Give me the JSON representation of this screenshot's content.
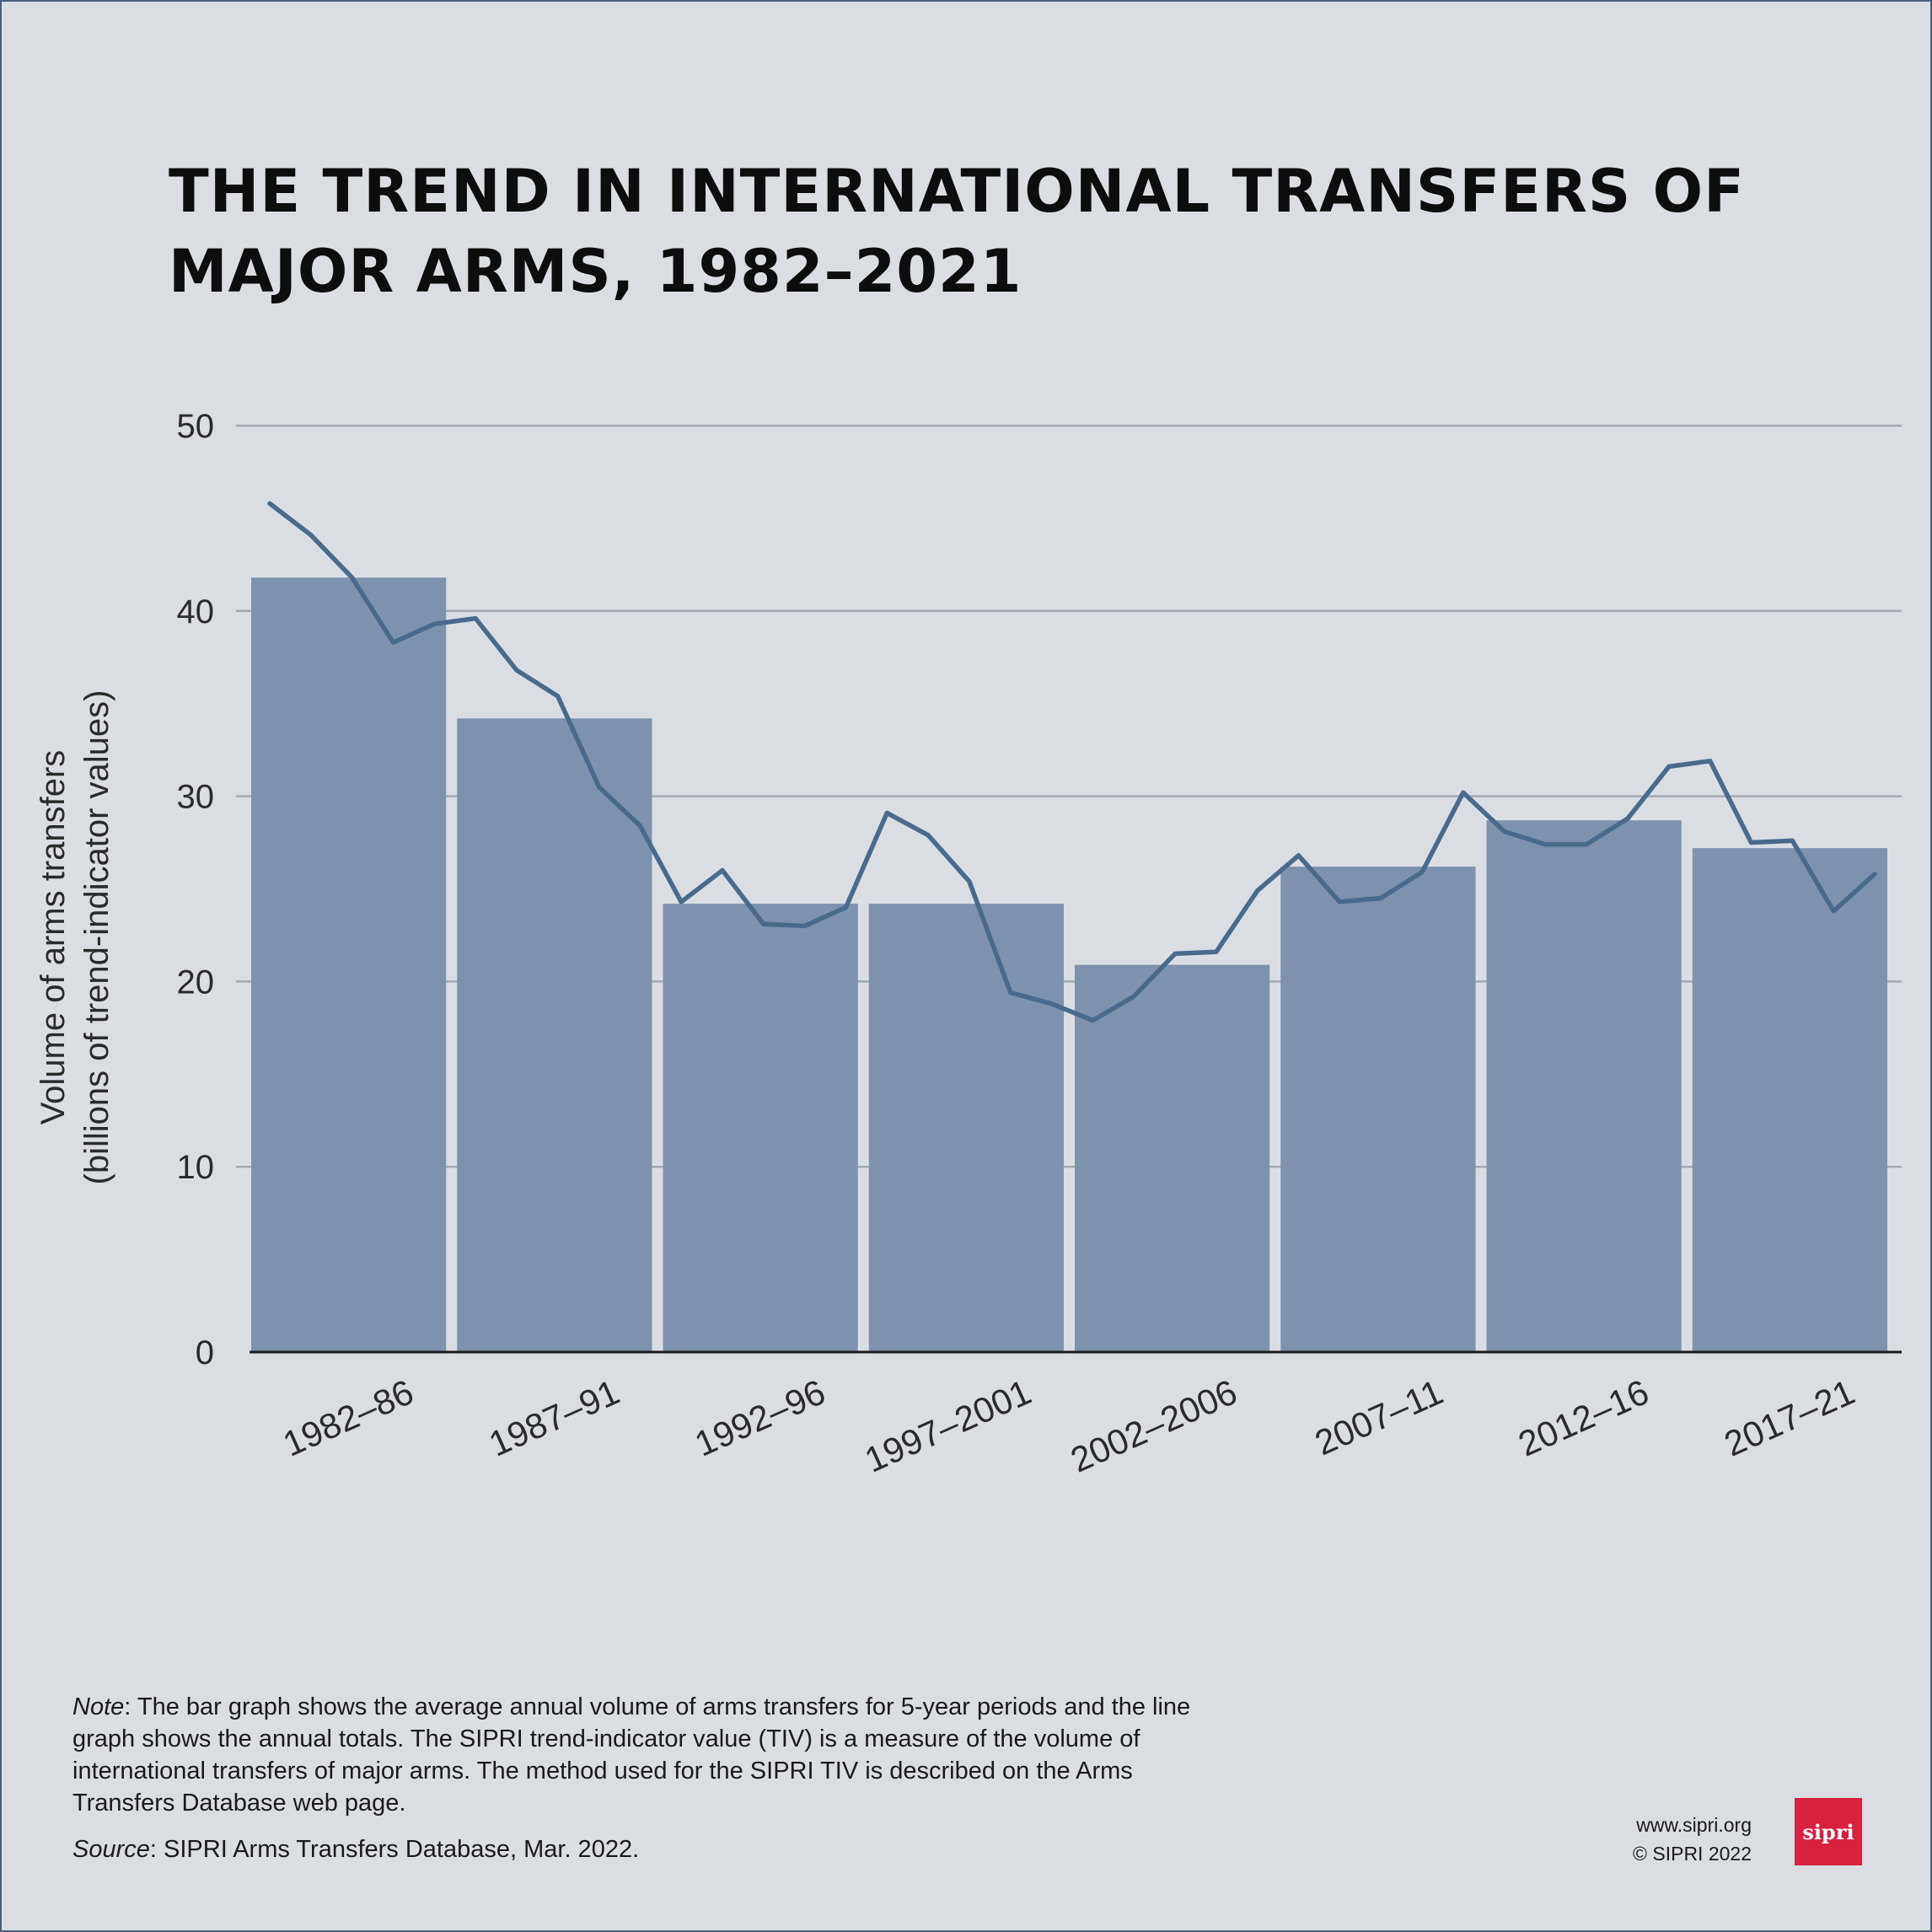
{
  "header": {
    "title_line1": "THE TREND IN INTERNATIONAL TRANSFERS OF",
    "title_line2": "MAJOR ARMS, 1982–2021"
  },
  "colors": {
    "background": "#dadee3",
    "bar": "#7f92ad",
    "line": "#4a6a8b",
    "grid": "#a3aab3",
    "logo": "#d8203f"
  },
  "chart_data": {
    "type": "bar",
    "title": "THE TREND IN INTERNATIONAL TRANSFERS OF MAJOR ARMS, 1982–2021",
    "ylabel_line1": "Volume of arms transfers",
    "ylabel_line2": "(billions of trend-indicator values)",
    "xlabel": "",
    "ylim": [
      0,
      50
    ],
    "yticks": [
      0,
      10,
      20,
      30,
      40,
      50
    ],
    "grid": true,
    "categories": [
      "1982–86",
      "1987–91",
      "1992–96",
      "1997–2001",
      "2002–2006",
      "2007–11",
      "2012–16",
      "2017–21"
    ],
    "series": [
      {
        "kind": "bar",
        "values": [
          41.8,
          34.2,
          24.2,
          24.2,
          20.9,
          26.2,
          28.7,
          27.2
        ]
      },
      {
        "kind": "line",
        "x": [
          1982,
          1983,
          1984,
          1985,
          1986,
          1987,
          1988,
          1989,
          1990,
          1991,
          1992,
          1993,
          1994,
          1995,
          1996,
          1997,
          1998,
          1999,
          2000,
          2001,
          2002,
          2003,
          2004,
          2005,
          2006,
          2007,
          2008,
          2009,
          2010,
          2011,
          2012,
          2013,
          2014,
          2015,
          2016,
          2017,
          2018,
          2019,
          2020,
          2021
        ],
        "values": [
          45.8,
          44.1,
          41.8,
          38.3,
          39.3,
          39.6,
          36.8,
          35.4,
          30.5,
          28.4,
          24.3,
          26.0,
          23.1,
          23.0,
          24.0,
          29.1,
          27.9,
          25.4,
          19.4,
          18.8,
          17.9,
          19.2,
          21.5,
          21.6,
          24.9,
          26.8,
          24.3,
          24.5,
          25.9,
          30.2,
          28.1,
          27.4,
          27.4,
          28.8,
          31.6,
          31.9,
          27.5,
          27.6,
          23.8,
          25.8
        ]
      }
    ],
    "legend": "none"
  },
  "footer": {
    "note_label": "Note",
    "note_text": ": The bar graph shows the average annual volume of arms transfers for 5-year periods and the line graph shows the annual totals. The SIPRI trend-indicator value (TIV) is a measure of the volume of international transfers of major arms. The method used for the SIPRI TIV is described on the Arms Transfers Database web page.",
    "source_label": "Source",
    "source_text": ": SIPRI Arms Transfers Database, Mar. 2022.",
    "website": "www.sipri.org",
    "copyright": "© SIPRI 2022",
    "logo_text": "sipri"
  }
}
